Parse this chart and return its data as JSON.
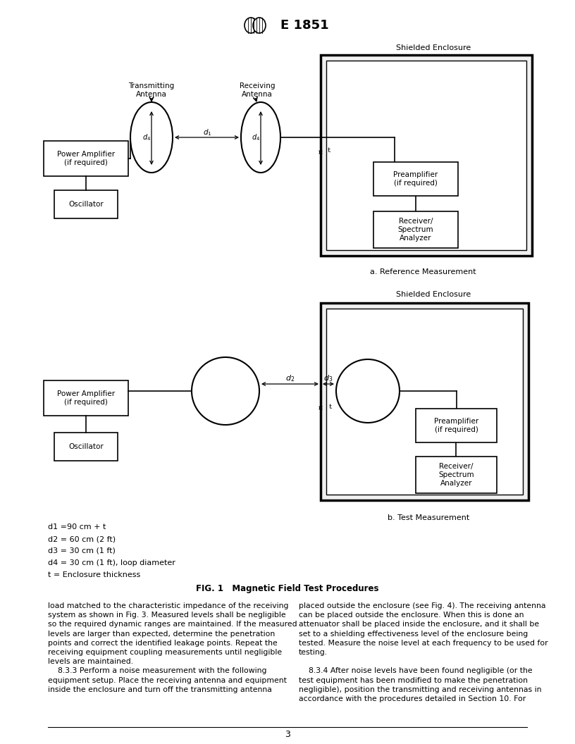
{
  "title": "E 1851",
  "page_number": "3",
  "fig_caption": "FIG. 1   Magnetic Field Test Procedures",
  "diagram_a_label": "a. Reference Measurement",
  "diagram_b_label": "b. Test Measurement",
  "shielded_enclosure_label": "Shielded Enclosure",
  "background_color": "#ffffff",
  "text_color": "#000000",
  "body_text_left_a": "load matched to the characteristic impedance of the receiving\nsystem as shown in Fig. 3. Measured levels shall be negligible\nso the required dynamic ranges are maintained. If the measured\nlevels are larger than expected, determine the penetration\npoints and correct the identified leakage points. Repeat the\nreceiving equipment coupling measurements until negligible\nlevels are maintained.",
  "body_text_left_b": "    8.3.3 Perform a noise measurement with the following\nequipment setup. Place the receiving antenna and equipment\ninside the enclosure and turn off the transmitting antenna",
  "body_text_right_a": "placed outside the enclosure (see Fig. 4). The receiving antenna\ncan be placed outside the enclosure. When this is done an\nattenuator shall be placed inside the enclosure, and it shall be\nset to a shielding effectiveness level of the enclosure being\ntested. Measure the noise level at each frequency to be used for\ntesting.",
  "body_text_right_b": "    8.3.4 After noise levels have been found negligible (or the\ntest equipment has been modified to make the penetration\nnegligible), position the transmitting and receiving antennas in\naccordance with the procedures detailed in Section 10. For",
  "legend_lines": [
    "d1 =90 cm + t",
    "d2 = 60 cm (2 ft)",
    "d3 = 30 cm (1 ft)",
    "d4 = 30 cm (1 ft), loop diameter",
    "t = Enclosure thickness"
  ]
}
